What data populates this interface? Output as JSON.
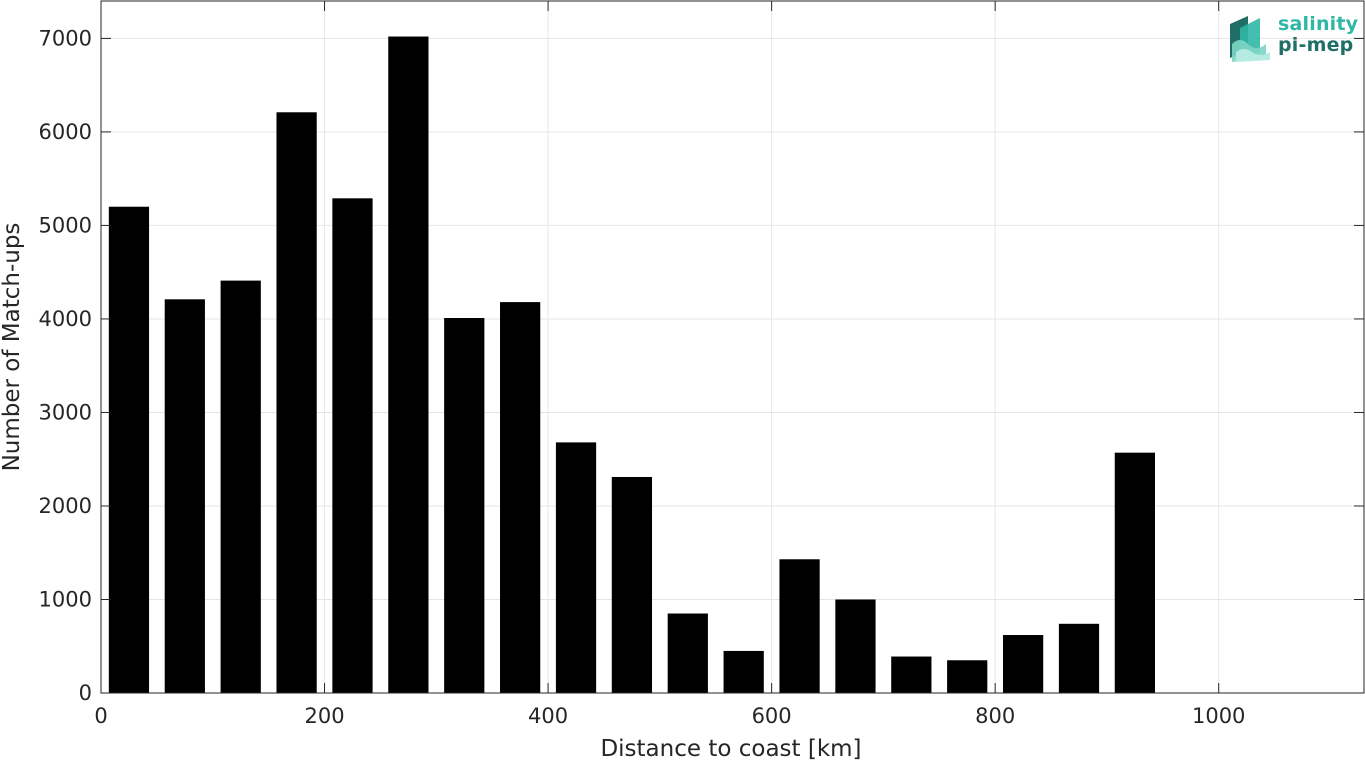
{
  "chart_data": {
    "type": "bar",
    "title": "",
    "xlabel": "Distance to coast [km]",
    "ylabel": "Number of Match-ups",
    "x": [
      25,
      75,
      125,
      175,
      225,
      275,
      325,
      375,
      425,
      475,
      525,
      575,
      625,
      675,
      725,
      775,
      825,
      875,
      925,
      975,
      1025,
      1075
    ],
    "values": [
      5200,
      4210,
      4410,
      6210,
      5290,
      7020,
      4010,
      4180,
      2680,
      2310,
      850,
      450,
      1430,
      1000,
      390,
      350,
      620,
      740,
      2570,
      0,
      0,
      0
    ],
    "bin_width": 50,
    "bar_fill_fraction": 0.72,
    "xlim": [
      0,
      1130
    ],
    "ylim": [
      0,
      7400
    ],
    "xticks": [
      0,
      200,
      400,
      600,
      800,
      1000
    ],
    "yticks": [
      0,
      1000,
      2000,
      3000,
      4000,
      5000,
      6000,
      7000
    ],
    "grid": true,
    "bar_color": "#000000",
    "grid_color": "#e6e6e6"
  },
  "logo": {
    "line1": "salinity",
    "line2": "pi-mep",
    "colors": [
      "#2fb7a6",
      "#1f6f66",
      "#7dd6c6"
    ]
  }
}
